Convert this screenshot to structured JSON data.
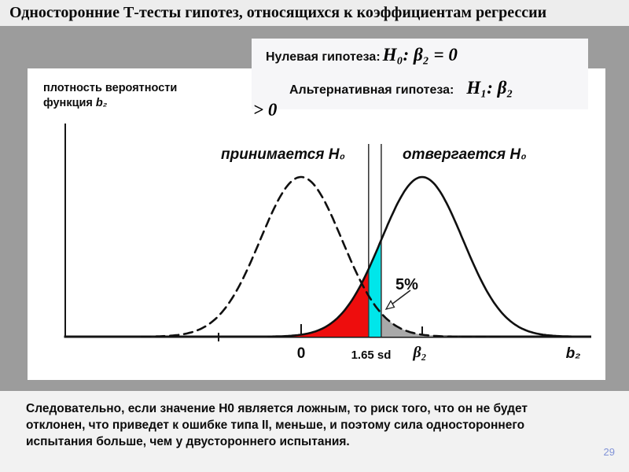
{
  "slide": {
    "title": "Односторонние Т-тесты гипотез, относящихся к коэффициентам регрессии",
    "page_number": "29"
  },
  "hypothesis_box": {
    "line1_label": "Нулевая гипотеза:",
    "line1_formula": "H₀: β₂ = 0",
    "line2_label": "Альтернативная гипотеза:",
    "line2_formula": "H₁: β₂",
    "wrap_formula": "> 0"
  },
  "figure": {
    "y_axis_label": {
      "line1": "плотность вероятности",
      "line2_prefix": "функция ",
      "line2_var": "b₂"
    },
    "accept_label": "принимается H₀",
    "reject_label": "отвергается H₀",
    "annotation": "5%",
    "x_labels": {
      "zero": "0",
      "critical": "1.65 sd",
      "beta2": "β₂",
      "b2": "b₂"
    }
  },
  "chart_data": {
    "type": "area",
    "description": "Two normal sampling distributions of regression coefficient b2: dashed curve centered at 0 (H0 true) and solid curve centered at β2 (H1 true). Vertical lines mark the one-sided (1.65 sd) and two-sided (1.96 sd) critical values. Red = Type II error region under the solid curve; cyan = power gained by the one-sided test; gray = 5% rejection tail under the dashed curve.",
    "x_axis_units": "standard deviations from 0",
    "curves": [
      {
        "name": "distribution under H0",
        "style": "dashed",
        "center_sd": 0,
        "sd": 1,
        "draw_from_sd": -3.9,
        "draw_to_sd": 4.9
      },
      {
        "name": "actual distribution (H1 true)",
        "style": "solid",
        "center_sd": 2.96,
        "sd": 1,
        "draw_from_sd": -0.8,
        "draw_to_sd": 6.6
      }
    ],
    "critical_values_sd": [
      1.65,
      1.96
    ],
    "regions": [
      {
        "name": "type-2-error",
        "under": "solid",
        "from_sd": -0.8,
        "to_sd": 1.65,
        "color": "#ee0d0d"
      },
      {
        "name": "one-sided-power-gain",
        "under": "solid",
        "from_sd": 1.65,
        "to_sd": 1.96,
        "color": "#00e6ea"
      },
      {
        "name": "alpha-5-percent",
        "under": "dashed",
        "from_sd": 1.96,
        "to_sd": 3.85,
        "color": "#a9a9a9"
      }
    ],
    "significance_label": "5%",
    "x_tick_labels": [
      "0",
      "1.65 sd",
      "β₂",
      "b₂"
    ]
  },
  "footer": {
    "lines": [
      "Следовательно, если значение Н0 является ложным, то риск того, что он не будет",
      "отклонен, что приведет к ошибке типа II, меньше, и поэтому сила одностороннего",
      "испытания больше, чем у двустороннего испытания."
    ]
  }
}
